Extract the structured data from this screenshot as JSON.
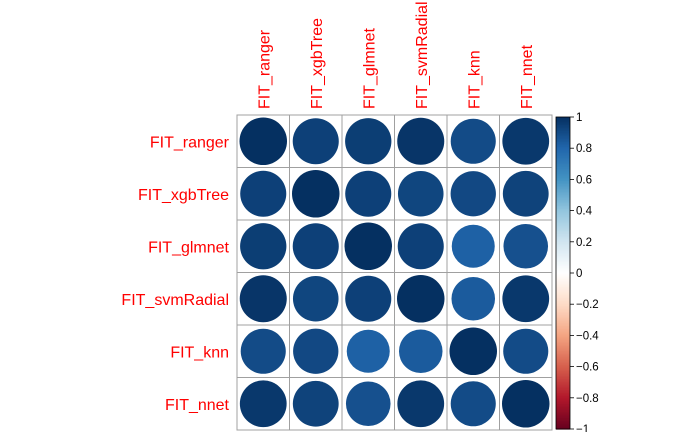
{
  "chart_data": {
    "type": "heatmap",
    "style": "corrplot circles",
    "variables": [
      "FIT_ranger",
      "FIT_xgbTree",
      "FIT_glmnet",
      "FIT_svmRadial",
      "FIT_knn",
      "FIT_nnet"
    ],
    "matrix": [
      [
        1.0,
        0.94,
        0.95,
        0.98,
        0.9,
        0.97
      ],
      [
        0.94,
        1.0,
        0.94,
        0.92,
        0.91,
        0.93
      ],
      [
        0.95,
        0.94,
        1.0,
        0.94,
        0.82,
        0.88
      ],
      [
        0.98,
        0.92,
        0.94,
        1.0,
        0.84,
        0.97
      ],
      [
        0.9,
        0.91,
        0.82,
        0.84,
        1.0,
        0.9
      ],
      [
        0.97,
        0.93,
        0.88,
        0.97,
        0.9,
        1.0
      ]
    ],
    "colorbar": {
      "ticks": [
        "1",
        "0.8",
        "0.6",
        "0.4",
        "0.2",
        "0",
        "−0.2",
        "−0.4",
        "−0.6",
        "−0.8",
        "−1"
      ],
      "range": [
        -1,
        1
      ]
    },
    "colors": {
      "label": "#ff0000",
      "grid": "#a0a0a0",
      "scale": [
        "#67001F",
        "#B2182B",
        "#D6604D",
        "#F4A582",
        "#FDDBC7",
        "#FFFFFF",
        "#D1E5F0",
        "#92C5DE",
        "#4393C3",
        "#2166AC",
        "#053061"
      ]
    },
    "grid": true,
    "legend": "right"
  }
}
